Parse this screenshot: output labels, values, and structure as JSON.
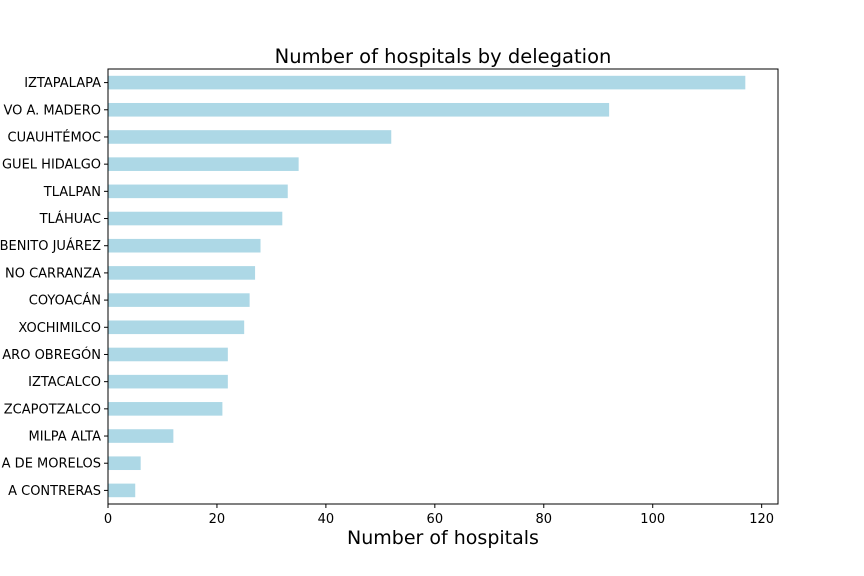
{
  "chart_data": {
    "type": "bar",
    "orientation": "horizontal",
    "title": "Number of hospitals by delegation",
    "xlabel": "Number of hospitals",
    "ylabel": "",
    "xlim": [
      0,
      123
    ],
    "x_ticks": [
      0,
      20,
      40,
      60,
      80,
      100,
      120
    ],
    "grid": false,
    "bar_color": "#add8e6",
    "categories": [
      "IZTAPALAPA",
      "VO A. MADERO",
      "CUAUHTÉMOC",
      "GUEL HIDALGO",
      "TLALPAN",
      "TLÁHUAC",
      "BENITO JUÁREZ",
      "NO CARRANZA",
      "COYOACÁN",
      "XOCHIMILCO",
      "ARO OBREGÓN",
      "IZTACALCO",
      "ZCAPOTZALCO",
      "MILPA ALTA",
      "A DE MORELOS",
      "A CONTRERAS"
    ],
    "values": [
      117,
      92,
      52,
      35,
      33,
      32,
      28,
      27,
      26,
      25,
      22,
      22,
      21,
      12,
      6,
      5
    ]
  }
}
